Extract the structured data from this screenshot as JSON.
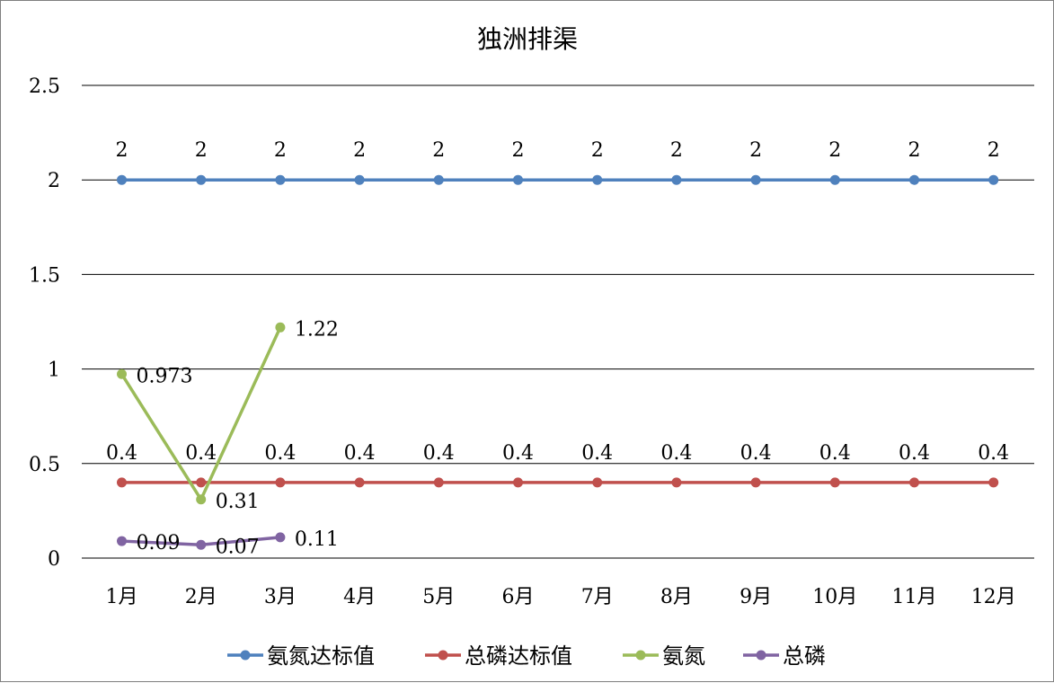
{
  "chart_data": {
    "type": "line",
    "title": "独洲排渠",
    "xlabel": "",
    "ylabel": "",
    "categories": [
      "1月",
      "2月",
      "3月",
      "4月",
      "5月",
      "6月",
      "7月",
      "8月",
      "9月",
      "10月",
      "11月",
      "12月"
    ],
    "ylim": [
      0,
      2.5
    ],
    "yticks": [
      0,
      0.5,
      1,
      1.5,
      2,
      2.5
    ],
    "ytick_labels": [
      "0",
      "0.5",
      "1",
      "1.5",
      "2",
      "2.5"
    ],
    "grid": true,
    "legend_position": "bottom",
    "series": [
      {
        "name": "氨氮达标值",
        "color": "#4f81bd",
        "values": [
          2,
          2,
          2,
          2,
          2,
          2,
          2,
          2,
          2,
          2,
          2,
          2
        ],
        "labels": [
          "2",
          "2",
          "2",
          "2",
          "2",
          "2",
          "2",
          "2",
          "2",
          "2",
          "2",
          "2"
        ],
        "label_position": "above"
      },
      {
        "name": "总磷达标值",
        "color": "#c0504d",
        "values": [
          0.4,
          0.4,
          0.4,
          0.4,
          0.4,
          0.4,
          0.4,
          0.4,
          0.4,
          0.4,
          0.4,
          0.4
        ],
        "labels": [
          "0.4",
          "0.4",
          "0.4",
          "0.4",
          "0.4",
          "0.4",
          "0.4",
          "0.4",
          "0.4",
          "0.4",
          "0.4",
          "0.4"
        ],
        "label_position": "above"
      },
      {
        "name": "氨氮",
        "color": "#9bbb59",
        "values": [
          0.973,
          0.31,
          1.22,
          null,
          null,
          null,
          null,
          null,
          null,
          null,
          null,
          null
        ],
        "labels": [
          "0.973",
          "0.31",
          "1.22",
          null,
          null,
          null,
          null,
          null,
          null,
          null,
          null,
          null
        ],
        "label_position": "right"
      },
      {
        "name": "总磷",
        "color": "#8064a2",
        "values": [
          0.09,
          0.07,
          0.11,
          null,
          null,
          null,
          null,
          null,
          null,
          null,
          null,
          null
        ],
        "labels": [
          "0.09",
          "0.07",
          "0.11",
          null,
          null,
          null,
          null,
          null,
          null,
          null,
          null,
          null
        ],
        "label_position": "right"
      }
    ]
  }
}
